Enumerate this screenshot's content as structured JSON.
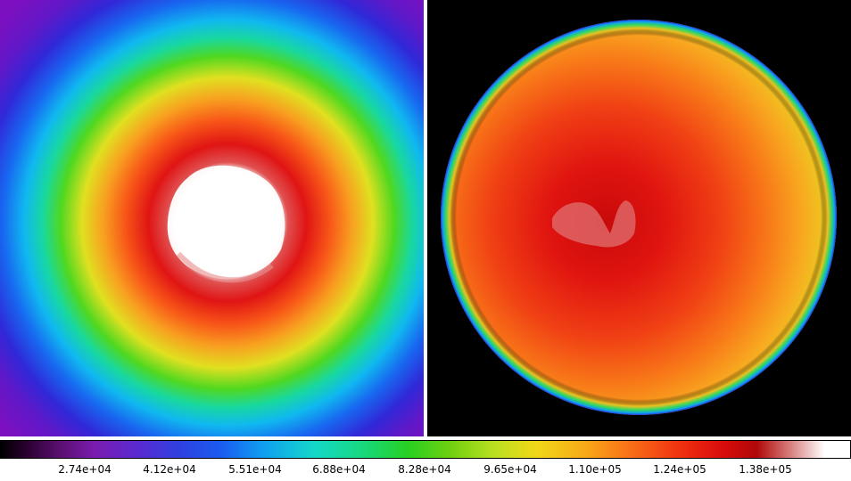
{
  "colorbar": {
    "ticks": [
      {
        "label": "2.74e+04"
      },
      {
        "label": "4.12e+04"
      },
      {
        "label": "5.51e+04"
      },
      {
        "label": "6.88e+04"
      },
      {
        "label": "8.28e+04"
      },
      {
        "label": "9.65e+04"
      },
      {
        "label": "1.10e+05"
      },
      {
        "label": "1.24e+05"
      },
      {
        "label": "1.38e+05"
      }
    ]
  }
}
